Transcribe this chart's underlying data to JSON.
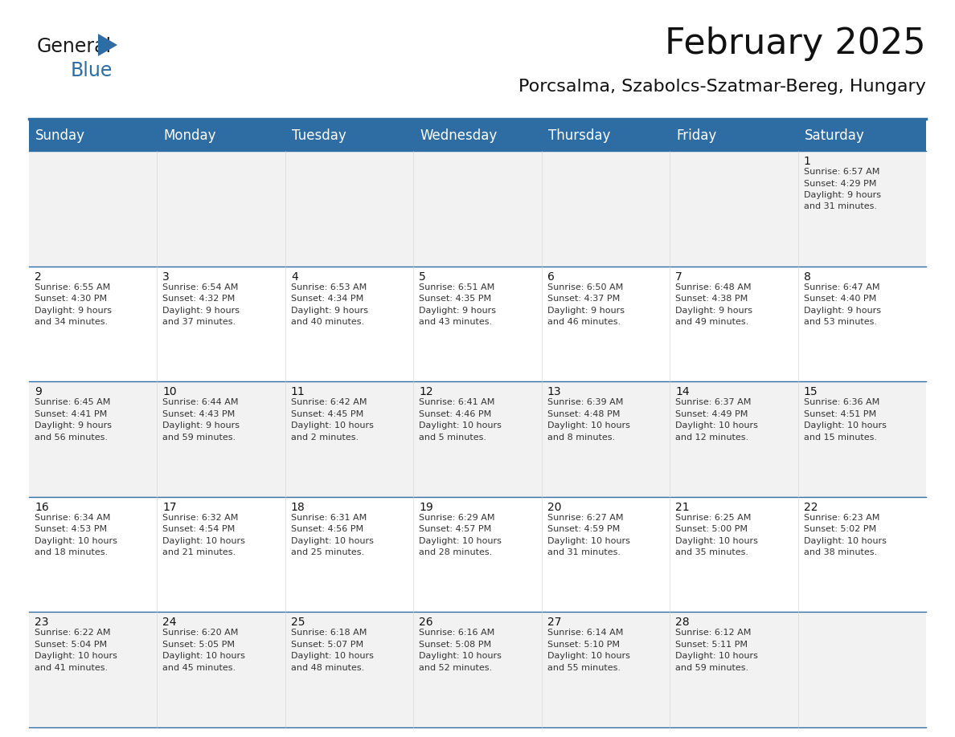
{
  "title": "February 2025",
  "subtitle": "Porcsalma, Szabolcs-Szatmar-Bereg, Hungary",
  "header_bg": "#2E6DA4",
  "header_text": "#FFFFFF",
  "cell_bg_light": "#F2F2F2",
  "cell_bg_white": "#FFFFFF",
  "day_headers": [
    "Sunday",
    "Monday",
    "Tuesday",
    "Wednesday",
    "Thursday",
    "Friday",
    "Saturday"
  ],
  "days": [
    {
      "day": 1,
      "col": 6,
      "row": 0,
      "sunrise": "6:57 AM",
      "sunset": "4:29 PM",
      "daylight": "9 hours",
      "daylight2": "and 31 minutes."
    },
    {
      "day": 2,
      "col": 0,
      "row": 1,
      "sunrise": "6:55 AM",
      "sunset": "4:30 PM",
      "daylight": "9 hours",
      "daylight2": "and 34 minutes."
    },
    {
      "day": 3,
      "col": 1,
      "row": 1,
      "sunrise": "6:54 AM",
      "sunset": "4:32 PM",
      "daylight": "9 hours",
      "daylight2": "and 37 minutes."
    },
    {
      "day": 4,
      "col": 2,
      "row": 1,
      "sunrise": "6:53 AM",
      "sunset": "4:34 PM",
      "daylight": "9 hours",
      "daylight2": "and 40 minutes."
    },
    {
      "day": 5,
      "col": 3,
      "row": 1,
      "sunrise": "6:51 AM",
      "sunset": "4:35 PM",
      "daylight": "9 hours",
      "daylight2": "and 43 minutes."
    },
    {
      "day": 6,
      "col": 4,
      "row": 1,
      "sunrise": "6:50 AM",
      "sunset": "4:37 PM",
      "daylight": "9 hours",
      "daylight2": "and 46 minutes."
    },
    {
      "day": 7,
      "col": 5,
      "row": 1,
      "sunrise": "6:48 AM",
      "sunset": "4:38 PM",
      "daylight": "9 hours",
      "daylight2": "and 49 minutes."
    },
    {
      "day": 8,
      "col": 6,
      "row": 1,
      "sunrise": "6:47 AM",
      "sunset": "4:40 PM",
      "daylight": "9 hours",
      "daylight2": "and 53 minutes."
    },
    {
      "day": 9,
      "col": 0,
      "row": 2,
      "sunrise": "6:45 AM",
      "sunset": "4:41 PM",
      "daylight": "9 hours",
      "daylight2": "and 56 minutes."
    },
    {
      "day": 10,
      "col": 1,
      "row": 2,
      "sunrise": "6:44 AM",
      "sunset": "4:43 PM",
      "daylight": "9 hours",
      "daylight2": "and 59 minutes."
    },
    {
      "day": 11,
      "col": 2,
      "row": 2,
      "sunrise": "6:42 AM",
      "sunset": "4:45 PM",
      "daylight": "10 hours",
      "daylight2": "and 2 minutes."
    },
    {
      "day": 12,
      "col": 3,
      "row": 2,
      "sunrise": "6:41 AM",
      "sunset": "4:46 PM",
      "daylight": "10 hours",
      "daylight2": "and 5 minutes."
    },
    {
      "day": 13,
      "col": 4,
      "row": 2,
      "sunrise": "6:39 AM",
      "sunset": "4:48 PM",
      "daylight": "10 hours",
      "daylight2": "and 8 minutes."
    },
    {
      "day": 14,
      "col": 5,
      "row": 2,
      "sunrise": "6:37 AM",
      "sunset": "4:49 PM",
      "daylight": "10 hours",
      "daylight2": "and 12 minutes."
    },
    {
      "day": 15,
      "col": 6,
      "row": 2,
      "sunrise": "6:36 AM",
      "sunset": "4:51 PM",
      "daylight": "10 hours",
      "daylight2": "and 15 minutes."
    },
    {
      "day": 16,
      "col": 0,
      "row": 3,
      "sunrise": "6:34 AM",
      "sunset": "4:53 PM",
      "daylight": "10 hours",
      "daylight2": "and 18 minutes."
    },
    {
      "day": 17,
      "col": 1,
      "row": 3,
      "sunrise": "6:32 AM",
      "sunset": "4:54 PM",
      "daylight": "10 hours",
      "daylight2": "and 21 minutes."
    },
    {
      "day": 18,
      "col": 2,
      "row": 3,
      "sunrise": "6:31 AM",
      "sunset": "4:56 PM",
      "daylight": "10 hours",
      "daylight2": "and 25 minutes."
    },
    {
      "day": 19,
      "col": 3,
      "row": 3,
      "sunrise": "6:29 AM",
      "sunset": "4:57 PM",
      "daylight": "10 hours",
      "daylight2": "and 28 minutes."
    },
    {
      "day": 20,
      "col": 4,
      "row": 3,
      "sunrise": "6:27 AM",
      "sunset": "4:59 PM",
      "daylight": "10 hours",
      "daylight2": "and 31 minutes."
    },
    {
      "day": 21,
      "col": 5,
      "row": 3,
      "sunrise": "6:25 AM",
      "sunset": "5:00 PM",
      "daylight": "10 hours",
      "daylight2": "and 35 minutes."
    },
    {
      "day": 22,
      "col": 6,
      "row": 3,
      "sunrise": "6:23 AM",
      "sunset": "5:02 PM",
      "daylight": "10 hours",
      "daylight2": "and 38 minutes."
    },
    {
      "day": 23,
      "col": 0,
      "row": 4,
      "sunrise": "6:22 AM",
      "sunset": "5:04 PM",
      "daylight": "10 hours",
      "daylight2": "and 41 minutes."
    },
    {
      "day": 24,
      "col": 1,
      "row": 4,
      "sunrise": "6:20 AM",
      "sunset": "5:05 PM",
      "daylight": "10 hours",
      "daylight2": "and 45 minutes."
    },
    {
      "day": 25,
      "col": 2,
      "row": 4,
      "sunrise": "6:18 AM",
      "sunset": "5:07 PM",
      "daylight": "10 hours",
      "daylight2": "and 48 minutes."
    },
    {
      "day": 26,
      "col": 3,
      "row": 4,
      "sunrise": "6:16 AM",
      "sunset": "5:08 PM",
      "daylight": "10 hours",
      "daylight2": "and 52 minutes."
    },
    {
      "day": 27,
      "col": 4,
      "row": 4,
      "sunrise": "6:14 AM",
      "sunset": "5:10 PM",
      "daylight": "10 hours",
      "daylight2": "and 55 minutes."
    },
    {
      "day": 28,
      "col": 5,
      "row": 4,
      "sunrise": "6:12 AM",
      "sunset": "5:11 PM",
      "daylight": "10 hours",
      "daylight2": "and 59 minutes."
    }
  ],
  "num_rows": 5,
  "num_cols": 7,
  "separator_color": "#2E6DA4",
  "title_fontsize": 32,
  "subtitle_fontsize": 16,
  "header_fontsize": 12,
  "day_num_fontsize": 10,
  "cell_text_fontsize": 8
}
